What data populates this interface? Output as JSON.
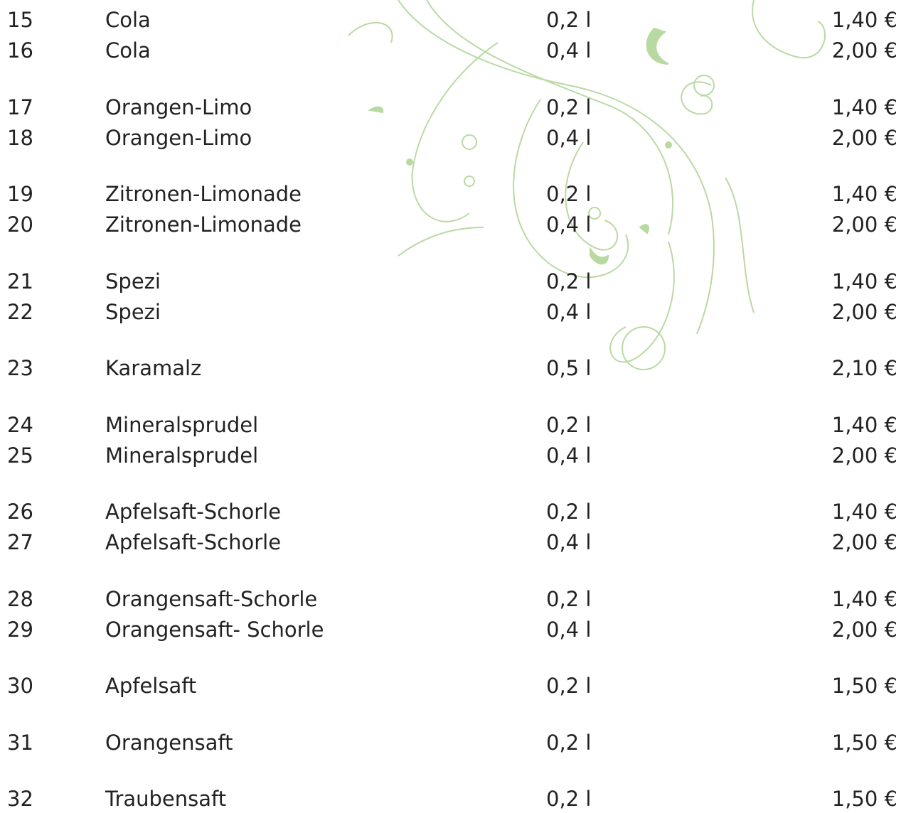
{
  "groups": [
    [
      {
        "number": "15",
        "name": "Cola",
        "volume": "0,2 l",
        "price": "1,40 €"
      },
      {
        "number": "16",
        "name": "Cola",
        "volume": "0,4 l",
        "price": "2,00 €"
      }
    ],
    [
      {
        "number": "17",
        "name": "Orangen-Limo",
        "volume": "0,2 l",
        "price": "1,40 €"
      },
      {
        "number": "18",
        "name": "Orangen-Limo",
        "volume": "0,4 l",
        "price": "2,00 €"
      }
    ],
    [
      {
        "number": "19",
        "name": "Zitronen-Limonade",
        "volume": "0,2 l",
        "price": "1,40 €"
      },
      {
        "number": "20",
        "name": "Zitronen-Limonade",
        "volume": "0,4 l",
        "price": "2,00 €"
      }
    ],
    [
      {
        "number": "21",
        "name": "Spezi",
        "volume": "0,2 l",
        "price": "1,40 €"
      },
      {
        "number": "22",
        "name": "Spezi",
        "volume": "0,4 l",
        "price": "2,00 €"
      }
    ],
    [
      {
        "number": "23",
        "name": "Karamalz",
        "volume": "0,5 l",
        "price": "2,10 €"
      }
    ],
    [
      {
        "number": "24",
        "name": "Mineralsprudel",
        "volume": "0,2 l",
        "price": "1,40 €"
      },
      {
        "number": "25",
        "name": "Mineralsprudel",
        "volume": "0,4 l",
        "price": "2,00 €"
      }
    ],
    [
      {
        "number": "26",
        "name": "Apfelsaft-Schorle",
        "volume": "0,2 l",
        "price": "1,40 €"
      },
      {
        "number": "27",
        "name": "Apfelsaft-Schorle",
        "volume": "0,4 l",
        "price": "2,00 €"
      }
    ],
    [
      {
        "number": "28",
        "name": "Orangensaft-Schorle",
        "volume": "0,2 l",
        "price": "1,40 €"
      },
      {
        "number": "29",
        "name": "Orangensaft- Schorle",
        "volume": "0,4 l",
        "price": "2,00 €"
      }
    ],
    [
      {
        "number": "30",
        "name": "Apfelsaft",
        "volume": "0,2 l",
        "price": "1,50 €"
      }
    ],
    [
      {
        "number": "31",
        "name": "Orangensaft",
        "volume": "0,2 l",
        "price": "1,50 €"
      }
    ],
    [
      {
        "number": "32",
        "name": "Traubensaft",
        "volume": "0,2 l",
        "price": "1,50 €"
      }
    ]
  ]
}
